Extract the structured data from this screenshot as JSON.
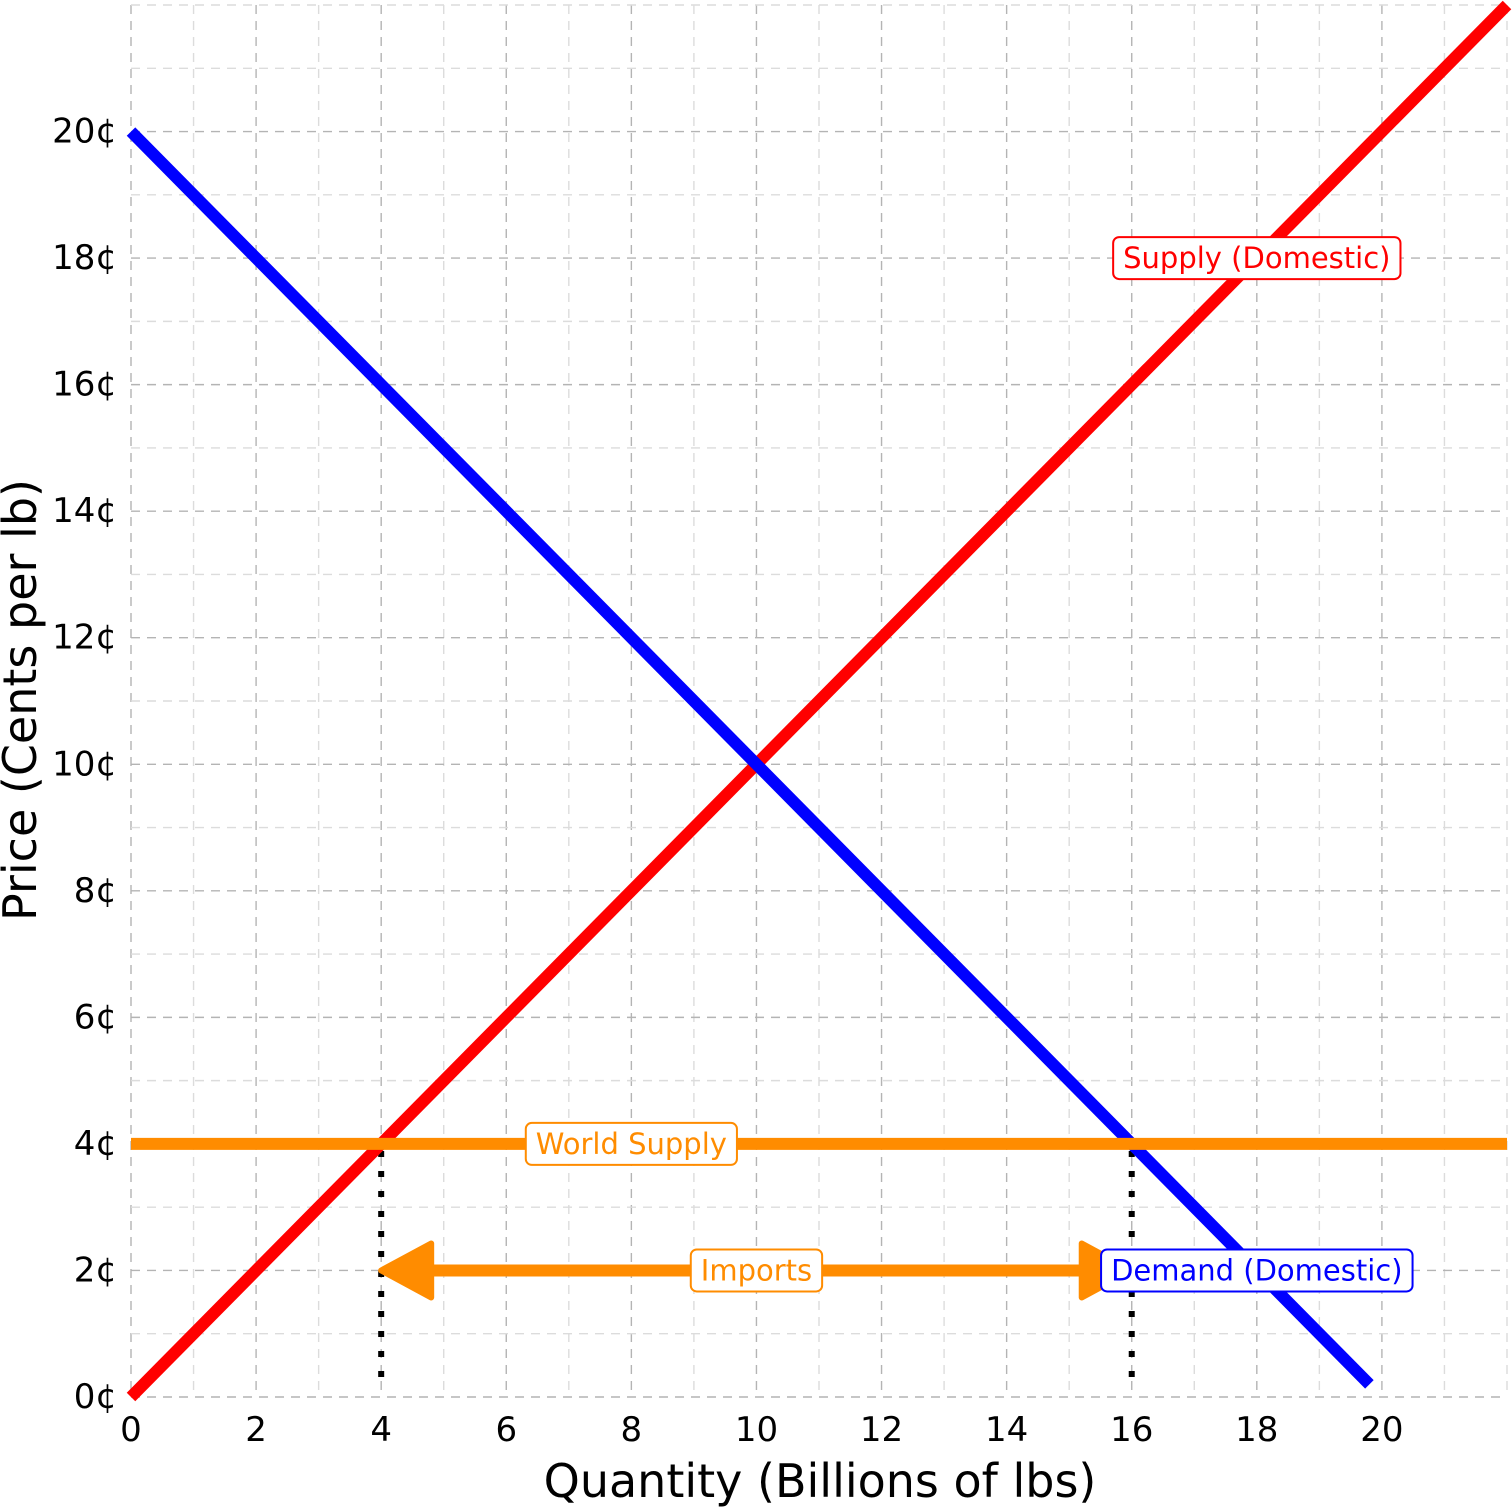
{
  "chart_data": {
    "type": "line",
    "xlabel": "Quantity (Billions of lbs)",
    "ylabel": "Price (Cents per lb)",
    "xlim": [
      0,
      22
    ],
    "ylim": [
      0,
      22
    ],
    "x_ticks": [
      0,
      2,
      4,
      6,
      8,
      10,
      12,
      14,
      16,
      18,
      20
    ],
    "y_ticks": [
      0,
      2,
      4,
      6,
      8,
      10,
      12,
      14,
      16,
      18,
      20
    ],
    "y_tick_suffix": "¢",
    "grid": true,
    "series": [
      {
        "name": "Supply (Domestic)",
        "color": "#ff0000",
        "x": [
          0,
          22
        ],
        "y": [
          0,
          22
        ],
        "label_at": [
          18.0,
          18.0
        ]
      },
      {
        "name": "Demand (Domestic)",
        "color": "#0000ff",
        "x": [
          0,
          19.8
        ],
        "y": [
          20,
          0.2
        ],
        "label_at": [
          18.0,
          2.0
        ]
      },
      {
        "name": "World Supply",
        "color": "#ff8c00",
        "x": [
          0,
          22
        ],
        "y": [
          4,
          4
        ],
        "label_at": [
          8.0,
          4.0
        ]
      }
    ],
    "reference_lines": [
      {
        "x": 4,
        "y_from": 0,
        "y_to": 4
      },
      {
        "x": 16,
        "y_from": 0,
        "y_to": 4
      }
    ],
    "annotations": [
      {
        "text": "Imports",
        "color": "#ff8c00",
        "arrow_from": [
          4,
          2
        ],
        "arrow_to": [
          16,
          2
        ],
        "label_at": [
          10,
          2
        ]
      }
    ]
  }
}
